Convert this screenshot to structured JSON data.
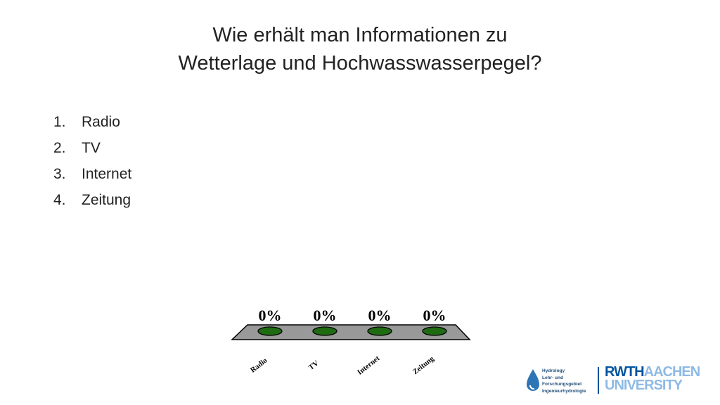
{
  "slide": {
    "title_line1": "Wie erhält man Informationen zu",
    "title_line2": "Wetterlage und Hochwasswasserpegel?"
  },
  "options": [
    {
      "num": "1.",
      "label": "Radio"
    },
    {
      "num": "2.",
      "label": "TV"
    },
    {
      "num": "3.",
      "label": "Internet"
    },
    {
      "num": "4.",
      "label": "Zeitung"
    }
  ],
  "chart_data": {
    "type": "bar",
    "categories": [
      "Radio",
      "TV",
      "Internet",
      "Zeitung"
    ],
    "values": [
      0,
      0,
      0,
      0
    ],
    "value_labels": [
      "0%",
      "0%",
      "0%",
      "0%"
    ],
    "unit": "%",
    "ylim": [
      0,
      100
    ],
    "bar_color": "#1f6b12",
    "floor_color": "#999999"
  },
  "logos": {
    "hydrology_lines": [
      "Hydrology",
      "Lehr- und",
      "Forschungsgebiet",
      "Ingenieurhydrologie"
    ],
    "university_line1_a": "RWTH",
    "university_line1_b": "AACHEN",
    "university_line2": "UNIVERSITY",
    "brand_color": "#00549f"
  }
}
